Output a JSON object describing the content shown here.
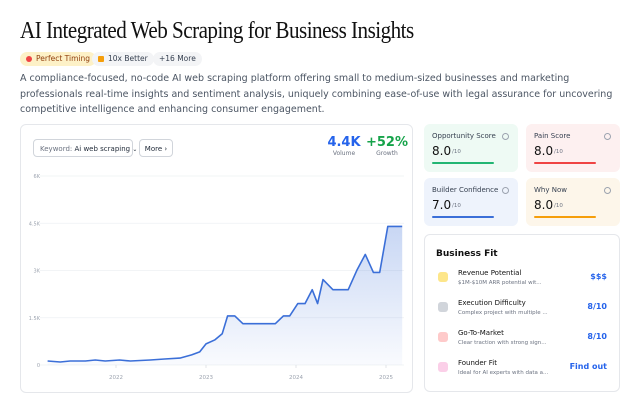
{
  "header": {
    "title": "AI Integrated Web Scraping for Business Insights",
    "tags": [
      "Perfect Timing",
      "10x Better",
      "+16 More"
    ],
    "description": "A compliance-focused, no-code AI web scraping platform offering small to medium-sized businesses and marketing professionals real-time insights and sentiment analysis, uniquely combining ease-of-use with legal assurance for uncovering competitive intelligence and enhancing consumer engagement."
  },
  "keyword": {
    "label": "Keyword:",
    "value": "Ai web scraping",
    "more": "More"
  },
  "metrics": [
    {
      "value": "4.4K",
      "label": "Volume"
    },
    {
      "value": "+52%",
      "label": "Growth"
    }
  ],
  "chart_data": {
    "type": "line",
    "x": [
      2021.24,
      2021.38,
      2021.49,
      2021.66,
      2021.77,
      2021.88,
      2022.04,
      2022.16,
      2022.38,
      2022.54,
      2022.71,
      2022.84,
      2022.93,
      2023.0,
      2023.1,
      2023.18,
      2023.24,
      2023.32,
      2023.41,
      2023.54,
      2023.77,
      2023.86,
      2023.93,
      2024.02,
      2024.1,
      2024.18,
      2024.24,
      2024.3,
      2024.41,
      2024.58,
      2024.68,
      2024.77,
      2024.86,
      2024.93,
      2025.02,
      2025.18
    ],
    "values": [
      128,
      96,
      128,
      128,
      160,
      128,
      160,
      128,
      160,
      190,
      220,
      320,
      415,
      670,
      800,
      990,
      1560,
      1560,
      1310,
      1310,
      1310,
      1560,
      1560,
      1950,
      1950,
      2390,
      1950,
      2710,
      2390,
      2390,
      3030,
      3510,
      2940,
      2940,
      4400,
      4400
    ],
    "color": "#3b6fd8",
    "xlim": [
      2021.2,
      2025.2
    ],
    "ylim": [
      0,
      6000
    ],
    "xticks": [
      2022,
      2023,
      2024,
      2025
    ],
    "yticks": [
      0,
      {
        "value": 1500,
        "label": "1.5K"
      },
      {
        "value": 3000,
        "label": "3K"
      },
      {
        "value": 4500,
        "label": "4.5K"
      },
      {
        "value": 6000,
        "label": "6K"
      }
    ],
    "grid": true
  },
  "scores": [
    {
      "name": "Opportunity Score",
      "value": "8.0",
      "max": "/10",
      "color": "#22b573",
      "bg": "#eefaf4"
    },
    {
      "name": "Pain Score",
      "value": "8.0",
      "max": "/10",
      "color": "#ef4444",
      "bg": "#fdf0f0"
    },
    {
      "name": "Builder Confidence",
      "value": "7.0",
      "max": "/10",
      "color": "#3b6fd8",
      "bg": "#eef3fc"
    },
    {
      "name": "Why Now",
      "value": "8.0",
      "max": "/10",
      "color": "#f59e0b",
      "bg": "#fdf6ea"
    }
  ],
  "business_fit": {
    "title": "Business Fit",
    "items": [
      {
        "name": "Revenue Potential",
        "desc": "$1M-$10M ARR potential wit...",
        "value": "$$$"
      },
      {
        "name": "Execution Difficulty",
        "desc": "Complex project with multiple ...",
        "value": "8/10"
      },
      {
        "name": "Go-To-Market",
        "desc": "Clear traction with strong sign...",
        "value": "8/10"
      },
      {
        "name": "Founder Fit",
        "desc": "Ideal for AI experts with data a...",
        "value": "Find out"
      }
    ]
  }
}
